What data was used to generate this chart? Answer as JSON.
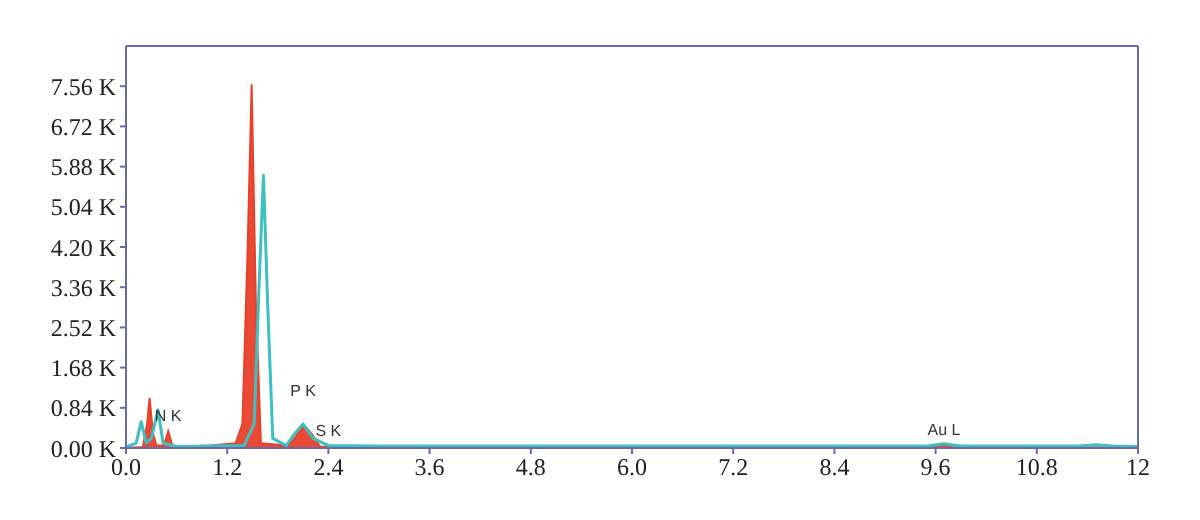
{
  "chart_data": {
    "type": "area",
    "series": [
      {
        "color": "#e8402a",
        "x": [
          0,
          0.2,
          0.25,
          0.28,
          0.32,
          0.36,
          0.45,
          0.5,
          0.55,
          0.7,
          1.0,
          1.3,
          1.38,
          1.44,
          1.49,
          1.54,
          1.6,
          1.9,
          2.0,
          2.1,
          2.2,
          2.3,
          3,
          6,
          9.6,
          9.7,
          9.8,
          12
        ],
        "values": [
          0,
          0.02,
          0.5,
          1.05,
          0.3,
          0.05,
          0.05,
          0.35,
          0.05,
          0.03,
          0.05,
          0.1,
          0.5,
          4.0,
          7.6,
          3.0,
          0.1,
          0.05,
          0.2,
          0.5,
          0.3,
          0.03,
          0.02,
          0.02,
          0.02,
          0.06,
          0.02,
          0.01
        ]
      },
      {
        "type": "line",
        "color": "#3fc0c0",
        "x": [
          0,
          0.12,
          0.18,
          0.24,
          0.3,
          0.38,
          0.44,
          0.6,
          1.4,
          1.52,
          1.58,
          1.63,
          1.68,
          1.74,
          1.9,
          2.0,
          2.1,
          2.22,
          2.4,
          3,
          9.5,
          9.7,
          9.9,
          11.3,
          11.5,
          11.7,
          12
        ],
        "values": [
          0.02,
          0.1,
          0.55,
          0.1,
          0.2,
          0.8,
          0.1,
          0.03,
          0.05,
          0.5,
          3.5,
          5.7,
          3.0,
          0.2,
          0.05,
          0.3,
          0.5,
          0.2,
          0.05,
          0.04,
          0.04,
          0.09,
          0.04,
          0.04,
          0.07,
          0.04,
          0.03
        ]
      }
    ],
    "xlim": [
      0,
      12
    ],
    "xticks": [
      {
        "value": 0,
        "label": "0.0"
      },
      1.2,
      2.4,
      3.6,
      4.8,
      {
        "value": 6,
        "label": "6.0"
      },
      7.2,
      8.4,
      9.6,
      10.8,
      12
    ],
    "ylim": [
      0,
      8.4
    ],
    "yticks": [
      {
        "value": 0,
        "label": "0.00 K"
      },
      {
        "value": 0.84,
        "label": "0.84 K"
      },
      {
        "value": 1.68,
        "label": "1.68 K"
      },
      {
        "value": 2.52,
        "label": "2.52 K"
      },
      {
        "value": 3.36,
        "label": "3.36 K"
      },
      {
        "value": 4.2,
        "label": "4.20 K"
      },
      {
        "value": 5.04,
        "label": "5.04 K"
      },
      {
        "value": 5.88,
        "label": "5.88 K"
      },
      {
        "value": 6.72,
        "label": "6.72 K"
      },
      {
        "value": 7.56,
        "label": "7.56 K"
      }
    ],
    "annotations": [
      {
        "text": "N K",
        "x": 0.5,
        "y": 0.35
      },
      {
        "text": "P K",
        "x": 2.1,
        "y": 0.5
      },
      {
        "text": "S K",
        "x": 2.4,
        "y": 0.05
      },
      {
        "text": "Au L",
        "x": 9.7,
        "y": 0.06
      }
    ]
  }
}
